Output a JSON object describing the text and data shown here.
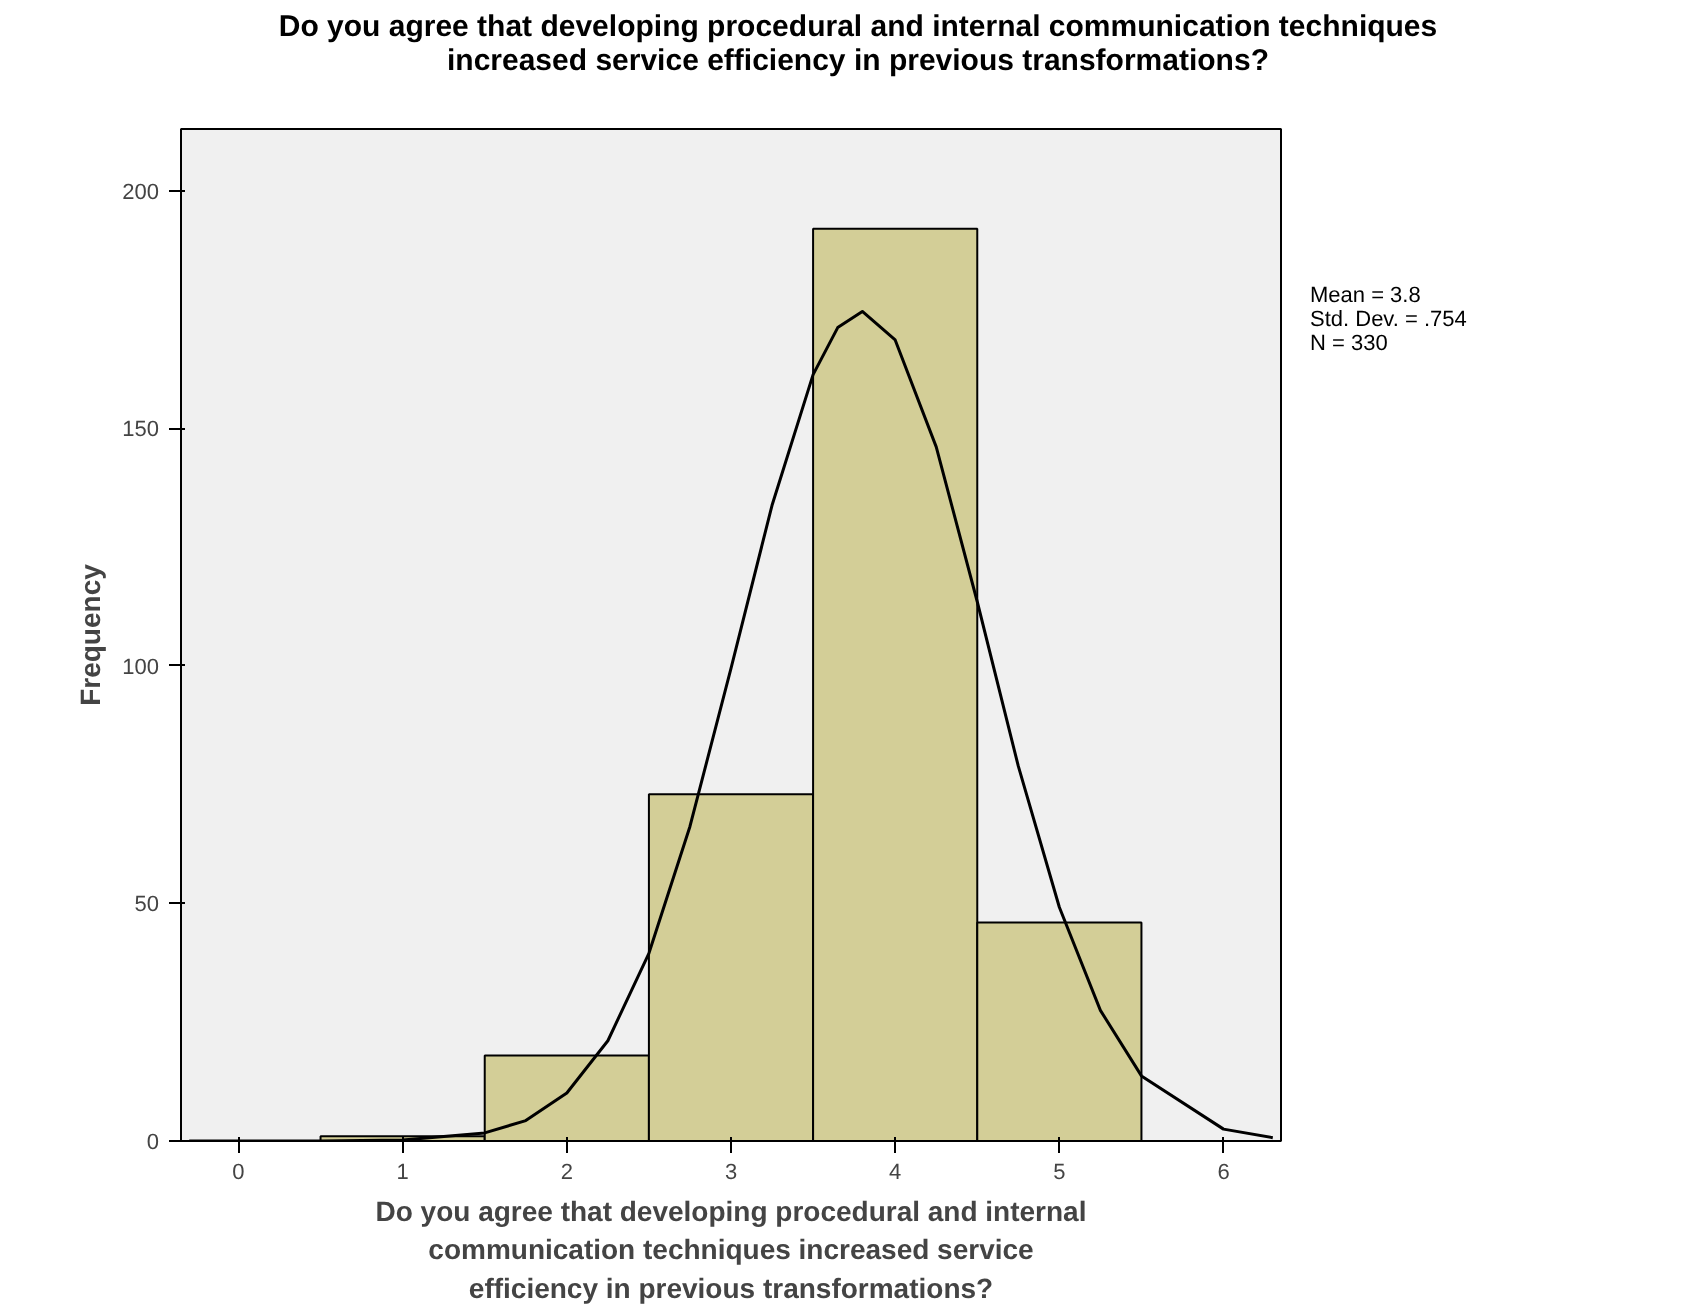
{
  "chart_data": {
    "type": "histogram",
    "title": "Do you agree that developing procedural and internal communication techniques\nincreased service efficiency in previous transformations?",
    "xlabel": "Do you agree that developing procedural and internal\ncommunication techniques increased service\nefficiency in previous transformations?",
    "ylabel": "Frequency",
    "bins": [
      0.5,
      1.5,
      2.5,
      3.5,
      4.5,
      5.5
    ],
    "values": [
      1,
      18,
      73,
      192,
      46
    ],
    "color": "#d3ce97",
    "series": [
      {
        "type": "line",
        "color": "#000000",
        "x": [
          -0.3,
          0.5,
          1.0,
          1.5,
          1.75,
          2.0,
          2.25,
          2.5,
          2.75,
          3.0,
          3.25,
          3.5,
          3.65,
          3.8,
          4.0,
          4.25,
          4.5,
          4.75,
          5.0,
          5.25,
          5.5,
          6.0,
          6.3
        ],
        "values": [
          0,
          0,
          0.2,
          1.7,
          4.3,
          10.1,
          21.1,
          39.5,
          66.2,
          99.5,
          133.8,
          161.3,
          171.2,
          174.6,
          168.6,
          146.1,
          113.5,
          78.9,
          49.2,
          27.5,
          13.7,
          2.5,
          0.7
        ]
      }
    ],
    "annotations": [
      "Mean = 3.8",
      "Std. Dev. = .754",
      "N = 330"
    ],
    "xlim": [
      -0.35,
      6.35
    ],
    "ylim": [
      0,
      213
    ],
    "xticks": [
      0,
      1,
      2,
      3,
      4,
      5,
      6
    ],
    "yticks": [
      0,
      50,
      100,
      150,
      200
    ],
    "grid": false
  }
}
